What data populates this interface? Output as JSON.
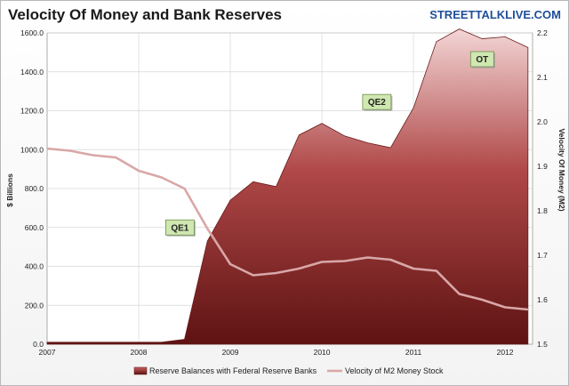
{
  "header": {
    "title": "Velocity Of Money and Bank Reserves",
    "brand": "STREETTALKLIVE.COM"
  },
  "chart_data": {
    "type": "area",
    "x_ticks": [
      "2007",
      "2008",
      "2009",
      "2010",
      "2011",
      "2012"
    ],
    "xlim": [
      2007.0,
      2012.3
    ],
    "y_left": {
      "label": "$ Billions",
      "ticks": [
        "0.0",
        "200.0",
        "400.0",
        "600.0",
        "800.0",
        "1000.0",
        "1200.0",
        "1400.0",
        "1600.0"
      ],
      "ylim": [
        0,
        1600
      ]
    },
    "y_right": {
      "label": "Velocity Of Money (M2)",
      "ticks": [
        "1.5",
        "1.6",
        "1.7",
        "1.8",
        "1.9",
        "2.0",
        "2.1",
        "2.2"
      ],
      "ylim": [
        1.5,
        2.2
      ]
    },
    "series": [
      {
        "name": "Reserve Balances with Federal Reserve Banks",
        "type": "area",
        "axis": "left",
        "color_top": "#f3d5d5",
        "color_bottom": "#5e1212",
        "x": [
          2007.0,
          2007.25,
          2007.5,
          2007.75,
          2008.0,
          2008.25,
          2008.5,
          2008.75,
          2009.0,
          2009.25,
          2009.5,
          2009.75,
          2010.0,
          2010.25,
          2010.5,
          2010.75,
          2011.0,
          2011.25,
          2011.5,
          2011.75,
          2012.0,
          2012.25
        ],
        "values": [
          10,
          10,
          10,
          10,
          10,
          10,
          25,
          530,
          740,
          835,
          810,
          1075,
          1135,
          1070,
          1035,
          1010,
          1215,
          1555,
          1620,
          1570,
          1580,
          1525
        ]
      },
      {
        "name": "Velocity of M2 Money Stock",
        "type": "line",
        "axis": "right",
        "color": "#d9a7a7",
        "x": [
          2007.0,
          2007.25,
          2007.5,
          2007.75,
          2008.0,
          2008.25,
          2008.5,
          2008.75,
          2009.0,
          2009.25,
          2009.5,
          2009.75,
          2010.0,
          2010.25,
          2010.5,
          2010.75,
          2011.0,
          2011.25,
          2011.5,
          2011.75,
          2012.0,
          2012.25
        ],
        "values": [
          1.94,
          1.935,
          1.925,
          1.92,
          1.89,
          1.875,
          1.85,
          1.76,
          1.68,
          1.655,
          1.66,
          1.67,
          1.685,
          1.687,
          1.695,
          1.69,
          1.67,
          1.665,
          1.613,
          1.6,
          1.583,
          1.578
        ]
      }
    ],
    "annotations": [
      {
        "text": "QE1",
        "x": 2008.45,
        "y": 600
      },
      {
        "text": "QE2",
        "x": 2010.6,
        "y": 1245
      },
      {
        "text": "OT",
        "x": 2011.75,
        "y": 1465
      }
    ],
    "legend_position": "bottom-center",
    "grid": true
  }
}
